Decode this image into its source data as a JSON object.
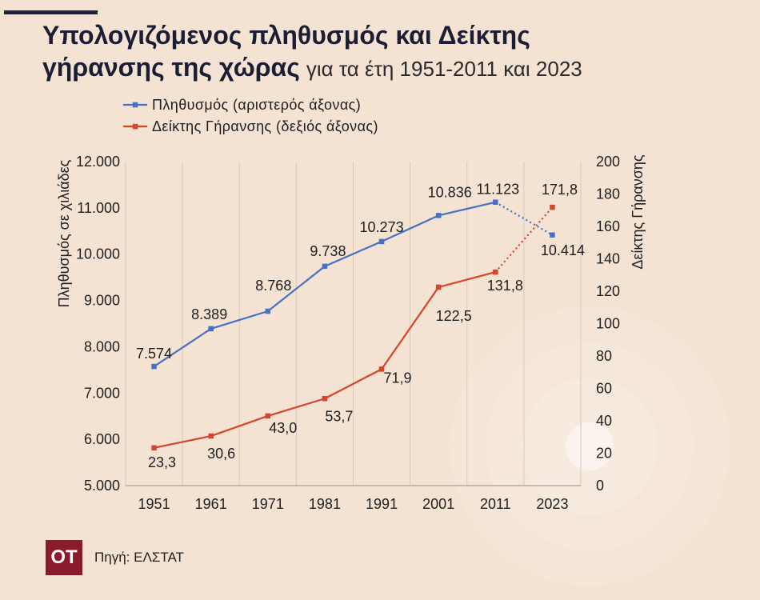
{
  "chart_data": {
    "type": "line",
    "title": {
      "line1_bold": "Υπολογιζόμενος πληθυσμός και Δείκτης",
      "line2_bold": "γήρανσης της χώρας",
      "line2_regular": "για τα έτη 1951-2011 και 2023"
    },
    "categories": [
      "1951",
      "1961",
      "1971",
      "1981",
      "1991",
      "2001",
      "2011",
      "2023"
    ],
    "series": [
      {
        "name": "Πληθυσμός (αριστερός άξονας)",
        "axis": "left",
        "color": "#4472c4",
        "marker": "square",
        "values": [
          7574,
          8389,
          8768,
          9738,
          10273,
          10836,
          11123,
          10414
        ],
        "data_labels": [
          "7.574",
          "8.389",
          "8.768",
          "9.738",
          "10.273",
          "10.836",
          "11.123",
          "10.414"
        ],
        "last_segment_style": "dotted"
      },
      {
        "name": "Δείκτης Γήρανσης (δεξιός άξονας)",
        "axis": "right",
        "color": "#d4452b",
        "marker": "square",
        "values": [
          23.3,
          30.6,
          43.0,
          53.7,
          71.9,
          122.5,
          131.8,
          171.8
        ],
        "data_labels": [
          "23,3",
          "30,6",
          "43,0",
          "53,7",
          "71,9",
          "122,5",
          "131,8",
          "171,8"
        ],
        "last_segment_style": "dotted"
      }
    ],
    "y_left": {
      "label": "Πληθυσμός σε χιλιάδες",
      "range": [
        5000,
        12000
      ],
      "ticks": [
        5000,
        6000,
        7000,
        8000,
        9000,
        10000,
        11000,
        12000
      ],
      "tick_labels": [
        "5.000",
        "6.000",
        "7.000",
        "8.000",
        "9.000",
        "10.000",
        "11.000",
        "12.000"
      ]
    },
    "y_right": {
      "label": "Δείκτης Γήρανσης",
      "range": [
        0,
        200
      ],
      "ticks": [
        0,
        20,
        40,
        60,
        80,
        100,
        120,
        140,
        160,
        180,
        200
      ],
      "tick_labels": [
        "0",
        "20",
        "40",
        "60",
        "80",
        "100",
        "120",
        "140",
        "160",
        "180",
        "200"
      ]
    },
    "grid": "vertical",
    "legend_position": "top-left"
  },
  "footer": {
    "logo_text": "OT",
    "source": "Πηγή: ΕΛΣΤΑΤ"
  },
  "colors": {
    "background": "#f4e2d3",
    "title": "#1a1d33",
    "accent_bar": "#1c2340",
    "logo": "#8b1b2c"
  }
}
